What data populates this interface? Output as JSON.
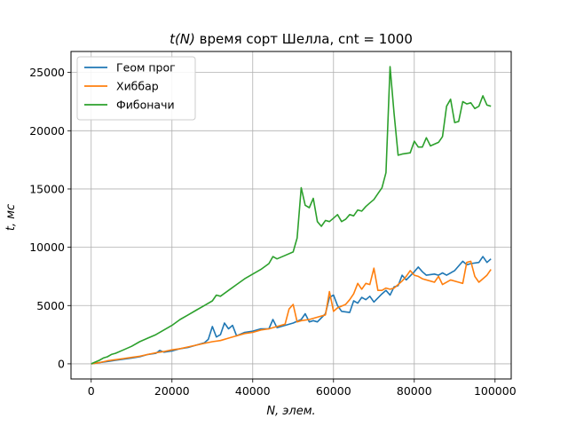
{
  "chart_data": {
    "type": "line",
    "title_prefix": "t(N)",
    "title_rest": " время сорт Шелла, cnt = 1000",
    "xlabel": "N, элем.",
    "ylabel": "t, мс",
    "xlim": [
      -5000,
      104000
    ],
    "ylim": [
      -1300,
      26800
    ],
    "xticks": [
      0,
      20000,
      40000,
      60000,
      80000,
      100000
    ],
    "yticks": [
      0,
      5000,
      10000,
      15000,
      20000,
      25000
    ],
    "xtick_labels": [
      "0",
      "20000",
      "40000",
      "60000",
      "80000",
      "100000"
    ],
    "ytick_labels": [
      "0",
      "5000",
      "10000",
      "15000",
      "20000",
      "25000"
    ],
    "grid": true,
    "legend_position": "top-left",
    "series": [
      {
        "name": "Геом прог",
        "color": "#1f77b4",
        "points": [
          [
            0,
            0
          ],
          [
            2000,
            100
          ],
          [
            4000,
            200
          ],
          [
            6000,
            300
          ],
          [
            8000,
            400
          ],
          [
            10000,
            500
          ],
          [
            12000,
            600
          ],
          [
            14000,
            800
          ],
          [
            16000,
            900
          ],
          [
            17000,
            1150
          ],
          [
            18000,
            1000
          ],
          [
            20000,
            1100
          ],
          [
            22000,
            1300
          ],
          [
            24000,
            1400
          ],
          [
            26000,
            1600
          ],
          [
            28000,
            1800
          ],
          [
            29000,
            2100
          ],
          [
            30000,
            3200
          ],
          [
            31000,
            2300
          ],
          [
            32000,
            2500
          ],
          [
            33000,
            3500
          ],
          [
            34000,
            3000
          ],
          [
            35000,
            3300
          ],
          [
            36000,
            2400
          ],
          [
            38000,
            2700
          ],
          [
            40000,
            2800
          ],
          [
            42000,
            3000
          ],
          [
            44000,
            3000
          ],
          [
            45000,
            3800
          ],
          [
            46000,
            3100
          ],
          [
            48000,
            3300
          ],
          [
            50000,
            3500
          ],
          [
            52000,
            3800
          ],
          [
            53000,
            4300
          ],
          [
            54000,
            3600
          ],
          [
            55000,
            3700
          ],
          [
            56000,
            3600
          ],
          [
            58000,
            4300
          ],
          [
            59000,
            5700
          ],
          [
            60000,
            5900
          ],
          [
            61000,
            5000
          ],
          [
            62000,
            4500
          ],
          [
            64000,
            4400
          ],
          [
            65000,
            5400
          ],
          [
            66000,
            5200
          ],
          [
            67000,
            5700
          ],
          [
            68000,
            5500
          ],
          [
            69000,
            5800
          ],
          [
            70000,
            5300
          ],
          [
            72000,
            6000
          ],
          [
            73000,
            6300
          ],
          [
            74000,
            5900
          ],
          [
            75000,
            6600
          ],
          [
            76000,
            6700
          ],
          [
            77000,
            7600
          ],
          [
            78000,
            7200
          ],
          [
            80000,
            7900
          ],
          [
            81000,
            8300
          ],
          [
            82000,
            7900
          ],
          [
            83000,
            7600
          ],
          [
            85000,
            7700
          ],
          [
            86000,
            7600
          ],
          [
            87000,
            7800
          ],
          [
            88000,
            7600
          ],
          [
            90000,
            8000
          ],
          [
            92000,
            8800
          ],
          [
            93000,
            8500
          ],
          [
            94000,
            8600
          ],
          [
            96000,
            8700
          ],
          [
            97000,
            9200
          ],
          [
            98000,
            8700
          ],
          [
            99000,
            9000
          ]
        ]
      },
      {
        "name": "Хиббар",
        "color": "#ff7f0e",
        "points": [
          [
            0,
            0
          ],
          [
            2000,
            100
          ],
          [
            4000,
            250
          ],
          [
            6000,
            350
          ],
          [
            8000,
            450
          ],
          [
            10000,
            550
          ],
          [
            12000,
            650
          ],
          [
            14000,
            800
          ],
          [
            16000,
            950
          ],
          [
            18000,
            1050
          ],
          [
            20000,
            1200
          ],
          [
            22000,
            1300
          ],
          [
            24000,
            1450
          ],
          [
            26000,
            1600
          ],
          [
            28000,
            1750
          ],
          [
            30000,
            1900
          ],
          [
            32000,
            2000
          ],
          [
            34000,
            2200
          ],
          [
            36000,
            2400
          ],
          [
            38000,
            2600
          ],
          [
            40000,
            2700
          ],
          [
            42000,
            2900
          ],
          [
            44000,
            3000
          ],
          [
            46000,
            3200
          ],
          [
            48000,
            3400
          ],
          [
            49000,
            4700
          ],
          [
            50000,
            5100
          ],
          [
            51000,
            3600
          ],
          [
            52000,
            3700
          ],
          [
            54000,
            3800
          ],
          [
            56000,
            4000
          ],
          [
            58000,
            4200
          ],
          [
            59000,
            6200
          ],
          [
            60000,
            4500
          ],
          [
            61000,
            4800
          ],
          [
            63000,
            5100
          ],
          [
            64000,
            5500
          ],
          [
            65000,
            6000
          ],
          [
            66000,
            6900
          ],
          [
            67000,
            6400
          ],
          [
            68000,
            6900
          ],
          [
            69000,
            6800
          ],
          [
            70000,
            8200
          ],
          [
            71000,
            6300
          ],
          [
            72000,
            6300
          ],
          [
            73000,
            6500
          ],
          [
            74000,
            6400
          ],
          [
            75000,
            6500
          ],
          [
            77000,
            7100
          ],
          [
            78000,
            7500
          ],
          [
            79000,
            8000
          ],
          [
            80000,
            7600
          ],
          [
            81000,
            7500
          ],
          [
            82000,
            7300
          ],
          [
            84000,
            7100
          ],
          [
            85000,
            7000
          ],
          [
            86000,
            7500
          ],
          [
            87000,
            6800
          ],
          [
            89000,
            7200
          ],
          [
            91000,
            7000
          ],
          [
            92000,
            6900
          ],
          [
            93000,
            8700
          ],
          [
            94000,
            8800
          ],
          [
            95000,
            7500
          ],
          [
            96000,
            7000
          ],
          [
            97000,
            7300
          ],
          [
            98000,
            7600
          ],
          [
            99000,
            8100
          ]
        ]
      },
      {
        "name": "Фибоначи",
        "color": "#2ca02c",
        "points": [
          [
            0,
            0
          ],
          [
            2000,
            300
          ],
          [
            3000,
            500
          ],
          [
            4000,
            600
          ],
          [
            5000,
            800
          ],
          [
            6000,
            900
          ],
          [
            8000,
            1200
          ],
          [
            10000,
            1500
          ],
          [
            12000,
            1900
          ],
          [
            14000,
            2200
          ],
          [
            16000,
            2500
          ],
          [
            18000,
            2900
          ],
          [
            20000,
            3300
          ],
          [
            22000,
            3800
          ],
          [
            24000,
            4200
          ],
          [
            26000,
            4600
          ],
          [
            28000,
            5000
          ],
          [
            30000,
            5400
          ],
          [
            31000,
            5900
          ],
          [
            32000,
            5800
          ],
          [
            34000,
            6300
          ],
          [
            36000,
            6800
          ],
          [
            38000,
            7300
          ],
          [
            40000,
            7700
          ],
          [
            42000,
            8100
          ],
          [
            44000,
            8600
          ],
          [
            45000,
            9200
          ],
          [
            46000,
            9000
          ],
          [
            48000,
            9300
          ],
          [
            50000,
            9600
          ],
          [
            51000,
            10800
          ],
          [
            52000,
            15100
          ],
          [
            53000,
            13600
          ],
          [
            54000,
            13400
          ],
          [
            55000,
            14200
          ],
          [
            56000,
            12200
          ],
          [
            57000,
            11800
          ],
          [
            58000,
            12300
          ],
          [
            59000,
            12200
          ],
          [
            60000,
            12500
          ],
          [
            61000,
            12800
          ],
          [
            62000,
            12200
          ],
          [
            63000,
            12400
          ],
          [
            64000,
            12800
          ],
          [
            65000,
            12700
          ],
          [
            66000,
            13200
          ],
          [
            67000,
            13100
          ],
          [
            68000,
            13500
          ],
          [
            69000,
            13800
          ],
          [
            70000,
            14100
          ],
          [
            71000,
            14600
          ],
          [
            72000,
            15100
          ],
          [
            73000,
            16400
          ],
          [
            74000,
            25500
          ],
          [
            75000,
            21500
          ],
          [
            76000,
            17900
          ],
          [
            77000,
            18000
          ],
          [
            79000,
            18100
          ],
          [
            80000,
            19100
          ],
          [
            81000,
            18600
          ],
          [
            82000,
            18600
          ],
          [
            83000,
            19400
          ],
          [
            84000,
            18700
          ],
          [
            86000,
            19000
          ],
          [
            87000,
            19500
          ],
          [
            88000,
            22100
          ],
          [
            89000,
            22700
          ],
          [
            90000,
            20700
          ],
          [
            91000,
            20800
          ],
          [
            92000,
            22500
          ],
          [
            93000,
            22300
          ],
          [
            94000,
            22400
          ],
          [
            95000,
            21900
          ],
          [
            96000,
            22100
          ],
          [
            97000,
            23000
          ],
          [
            98000,
            22200
          ],
          [
            99000,
            22100
          ]
        ]
      }
    ]
  }
}
